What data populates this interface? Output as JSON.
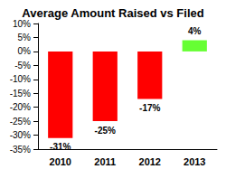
{
  "chart_data": {
    "type": "bar",
    "title": "Average Amount Raised vs Filed",
    "categories": [
      "2010",
      "2011",
      "2012",
      "2013"
    ],
    "values": [
      -31,
      -25,
      -17,
      4
    ],
    "value_labels": [
      "-31%",
      "-25%",
      "-17%",
      "4%"
    ],
    "colors": [
      "#ff0000",
      "#ff0000",
      "#ff0000",
      "#66ff33"
    ],
    "ylim": [
      -35,
      10
    ],
    "yticks": [
      {
        "value": -35,
        "label": "-35%"
      },
      {
        "value": -30,
        "label": "-30%"
      },
      {
        "value": -25,
        "label": "-25%"
      },
      {
        "value": -20,
        "label": "-20%"
      },
      {
        "value": -15,
        "label": "-15%"
      },
      {
        "value": -10,
        "label": "-10%"
      },
      {
        "value": -5,
        "label": "-5%"
      },
      {
        "value": 0,
        "label": "0%"
      },
      {
        "value": 5,
        "label": "5%"
      },
      {
        "value": 10,
        "label": "10%"
      }
    ],
    "grid": false,
    "data_labels": true
  }
}
